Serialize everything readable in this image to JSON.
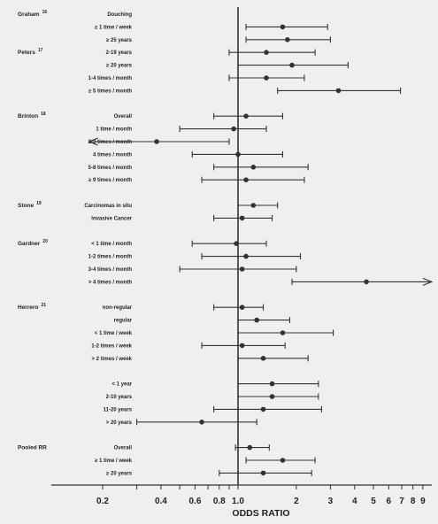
{
  "chart_data": {
    "type": "forest",
    "xlabel": "ODDS RATIO",
    "scale": "log",
    "xlim": [
      0.17,
      10
    ],
    "reference_line": 1,
    "ticks": [
      {
        "v": 0.2,
        "label": "0.2"
      },
      {
        "v": 0.3,
        "label": ""
      },
      {
        "v": 0.4,
        "label": "0.4"
      },
      {
        "v": 0.5,
        "label": ""
      },
      {
        "v": 0.6,
        "label": "0.6"
      },
      {
        "v": 0.7,
        "label": ""
      },
      {
        "v": 0.8,
        "label": "0.8"
      },
      {
        "v": 0.9,
        "label": ""
      },
      {
        "v": 1,
        "label": "1.0"
      },
      {
        "v": 2,
        "label": "2"
      },
      {
        "v": 3,
        "label": "3"
      },
      {
        "v": 4,
        "label": "4"
      },
      {
        "v": 5,
        "label": "5"
      },
      {
        "v": 6,
        "label": "6"
      },
      {
        "v": 7,
        "label": "7"
      },
      {
        "v": 8,
        "label": "8"
      },
      {
        "v": 9,
        "label": "9"
      }
    ],
    "studies": [
      {
        "name": "Graham",
        "ref": "16",
        "rows": [
          0
        ]
      },
      {
        "name": "Peters",
        "ref": "17",
        "rows": [
          3
        ]
      },
      {
        "name": "Brinton",
        "ref": "18",
        "rows": [
          8
        ]
      },
      {
        "name": "Stone",
        "ref": "19",
        "rows": [
          15
        ]
      },
      {
        "name": "Gardner",
        "ref": "20",
        "rows": [
          18
        ]
      },
      {
        "name": "Herrero",
        "ref": "21",
        "rows": [
          23
        ]
      },
      {
        "name": "Pooled RR",
        "ref": "",
        "rows": [
          34
        ]
      }
    ],
    "rows": [
      {
        "label": "Douching",
        "or": null,
        "lo": null,
        "hi": null
      },
      {
        "label": "≥ 1 time / week",
        "or": 1.7,
        "lo": 1.1,
        "hi": 2.9
      },
      {
        "label": "≥ 25 years",
        "or": 1.8,
        "lo": 1.1,
        "hi": 3.0
      },
      {
        "label": "2-19 years",
        "or": 1.4,
        "lo": 0.9,
        "hi": 2.5
      },
      {
        "label": "≥ 20 years",
        "or": 1.9,
        "lo": 1.0,
        "hi": 3.7
      },
      {
        "label": "1-4 times / month",
        "or": 1.4,
        "lo": 0.9,
        "hi": 2.2
      },
      {
        "label": "≥ 5 times / month",
        "or": 3.3,
        "lo": 1.6,
        "hi": 6.9
      },
      {
        "label": "",
        "or": null,
        "lo": null,
        "hi": null
      },
      {
        "label": "Overall",
        "or": 1.1,
        "lo": 0.75,
        "hi": 1.7
      },
      {
        "label": "1 time / month",
        "or": 0.95,
        "lo": 0.5,
        "hi": 1.4
      },
      {
        "label": "2-3 times / month",
        "or": 0.38,
        "lo": 0.17,
        "hi": 0.9,
        "arrow_left": true
      },
      {
        "label": "4 times / month",
        "or": 1.0,
        "lo": 0.58,
        "hi": 1.7
      },
      {
        "label": "5-8 times / month",
        "or": 1.2,
        "lo": 0.75,
        "hi": 2.3
      },
      {
        "label": "≥ 9 times / month",
        "or": 1.1,
        "lo": 0.65,
        "hi": 2.2
      },
      {
        "label": "",
        "or": null,
        "lo": null,
        "hi": null
      },
      {
        "label": "Carcinomas in situ",
        "or": 1.2,
        "lo": 1.0,
        "hi": 1.6
      },
      {
        "label": "Invasive Cancer",
        "or": 1.05,
        "lo": 0.75,
        "hi": 1.5
      },
      {
        "label": "",
        "or": null,
        "lo": null,
        "hi": null
      },
      {
        "label": "< 1 time / month",
        "or": 0.98,
        "lo": 0.58,
        "hi": 1.4
      },
      {
        "label": "1-2 times / month",
        "or": 1.1,
        "lo": 0.65,
        "hi": 2.1
      },
      {
        "label": "3-4 times / month",
        "or": 1.05,
        "lo": 0.5,
        "hi": 2.0
      },
      {
        "label": "> 4 times / month",
        "or": 4.6,
        "lo": 1.9,
        "hi": 10,
        "arrow_right": true
      },
      {
        "label": "",
        "or": null,
        "lo": null,
        "hi": null
      },
      {
        "label": "non-regular",
        "or": 1.05,
        "lo": 0.75,
        "hi": 1.35
      },
      {
        "label": "regular",
        "or": 1.25,
        "lo": 1.0,
        "hi": 1.85
      },
      {
        "label": "< 1 time / week",
        "or": 1.7,
        "lo": 1.0,
        "hi": 3.1
      },
      {
        "label": "1-2 times / week",
        "or": 1.05,
        "lo": 0.65,
        "hi": 1.75
      },
      {
        "label": "> 2 times / week",
        "or": 1.35,
        "lo": 1.0,
        "hi": 2.3
      },
      {
        "label": "",
        "or": null,
        "lo": null,
        "hi": null
      },
      {
        "label": "< 1 year",
        "or": 1.5,
        "lo": 1.0,
        "hi": 2.6
      },
      {
        "label": "2-10 years",
        "or": 1.5,
        "lo": 1.0,
        "hi": 2.6
      },
      {
        "label": "11-20 years",
        "or": 1.35,
        "lo": 0.75,
        "hi": 2.7
      },
      {
        "label": "> 20 years",
        "or": 0.65,
        "lo": 0.3,
        "hi": 1.25
      },
      {
        "label": "",
        "or": null,
        "lo": null,
        "hi": null
      },
      {
        "label": "Overall",
        "or": 1.15,
        "lo": 0.97,
        "hi": 1.45
      },
      {
        "label": "≥ 1 time / week",
        "or": 1.7,
        "lo": 1.1,
        "hi": 2.5
      },
      {
        "label": "≥ 20 years",
        "or": 1.35,
        "lo": 0.8,
        "hi": 2.4
      }
    ]
  }
}
